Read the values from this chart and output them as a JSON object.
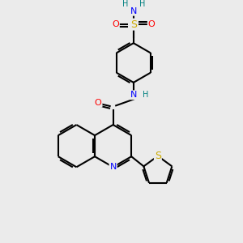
{
  "bg_color": "#ebebeb",
  "atom_colors": {
    "C": "#000000",
    "N": "#0000ff",
    "O": "#ff0000",
    "S_sulfo": "#ccaa00",
    "S_thio": "#ccaa00",
    "H": "#008080"
  },
  "bond_color": "#000000",
  "bond_width": 1.5
}
